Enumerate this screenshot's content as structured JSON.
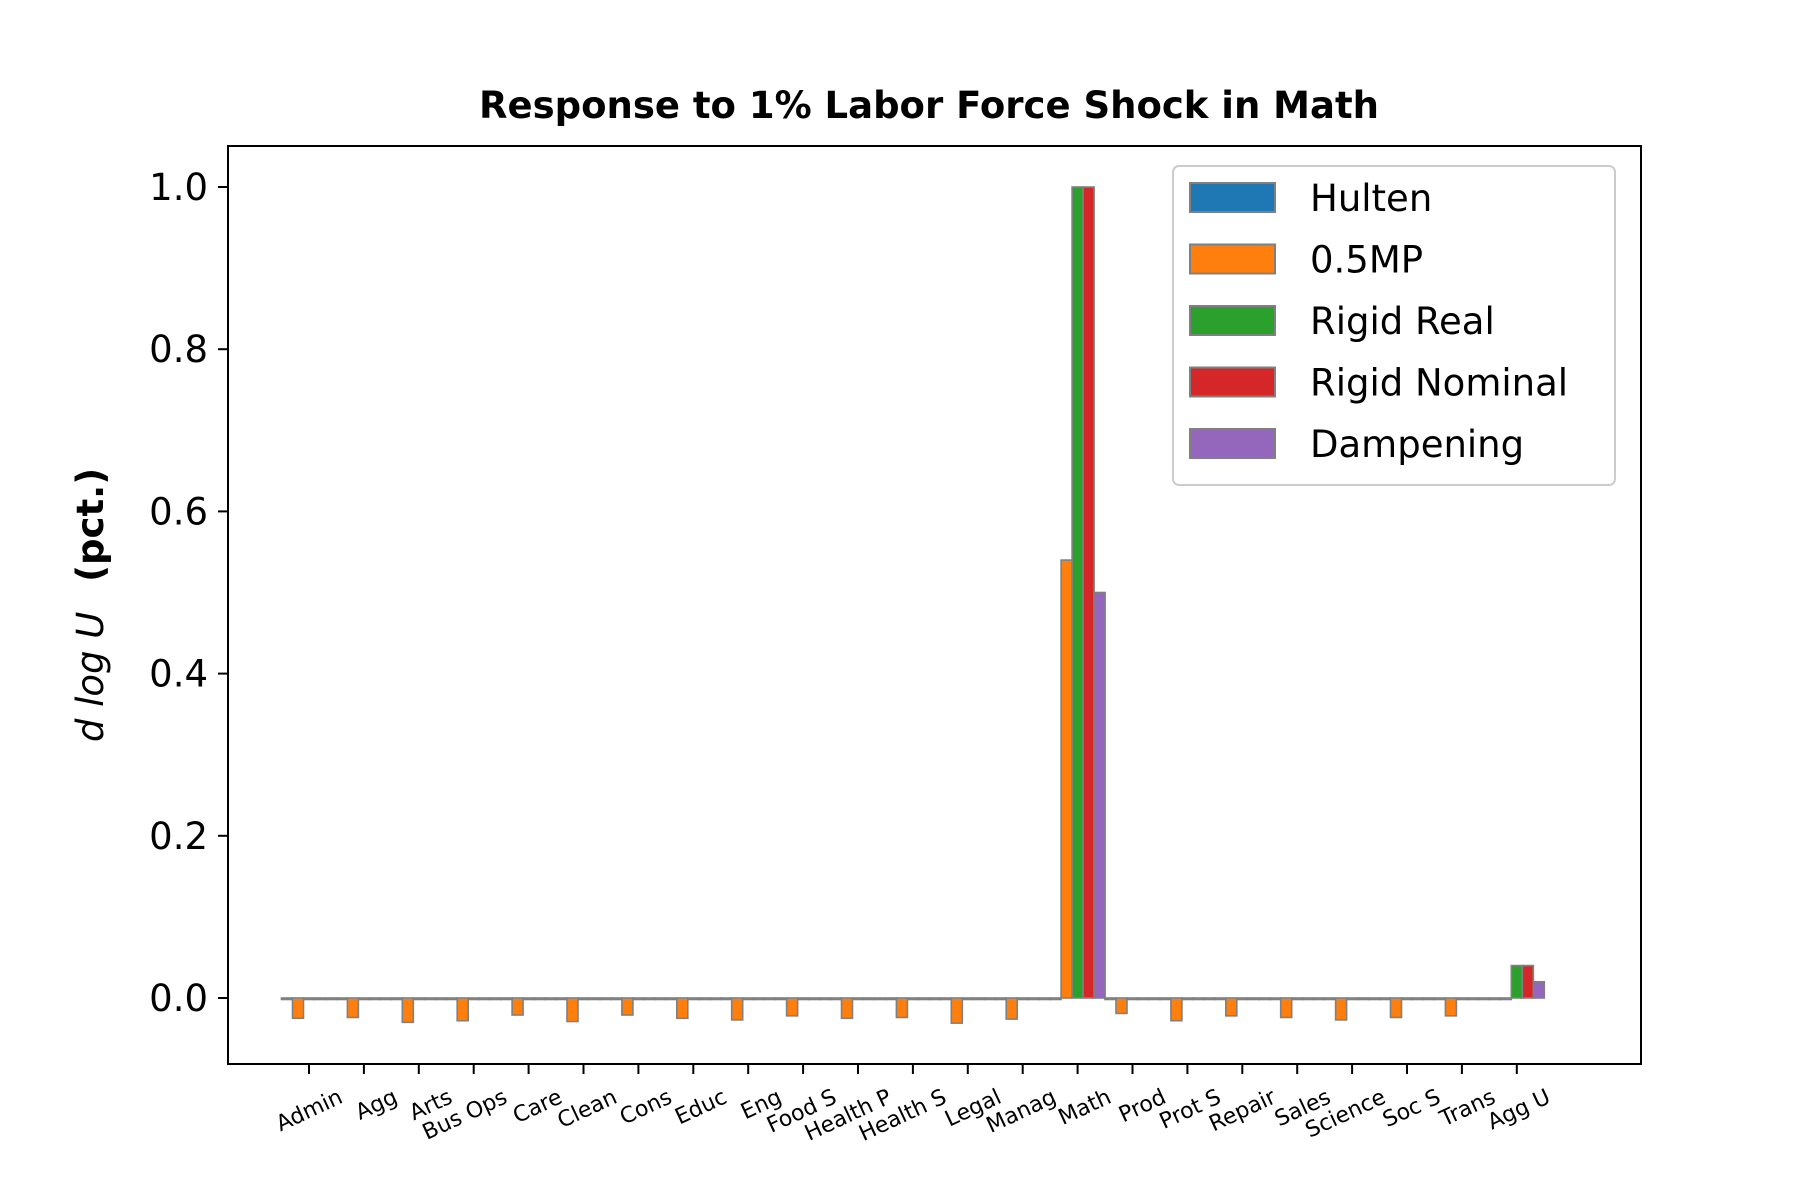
{
  "chart_data": {
    "type": "bar",
    "title": "Response to 1% Labor Force Shock in Math",
    "xlabel": "",
    "ylabel_math": "d log U",
    "ylabel_unit": "(pct.)",
    "ylim": [
      -0.08,
      1.05
    ],
    "yticks": [
      0.0,
      0.2,
      0.4,
      0.6,
      0.8,
      1.0
    ],
    "ytick_labels": [
      "0.0",
      "0.2",
      "0.4",
      "0.6",
      "0.8",
      "1.0"
    ],
    "grid": false,
    "legend_position": "top-right",
    "categories": [
      "Admin",
      "Agg",
      "Arts",
      "Bus Ops",
      "Care",
      "Clean",
      "Cons",
      "Educ",
      "Eng",
      "Food S",
      "Health P",
      "Health S",
      "Legal",
      "Manag",
      "Math",
      "Prod",
      "Prot S",
      "Repair",
      "Sales",
      "Science",
      "Soc S",
      "Trans",
      "Agg U"
    ],
    "series": [
      {
        "name": "Hulten",
        "color": "#1f77b4",
        "values": [
          0,
          0,
          0,
          0,
          0,
          0,
          0,
          0,
          0,
          0,
          0,
          0,
          0,
          0,
          0,
          0,
          0,
          0,
          0,
          0,
          0,
          0,
          0
        ]
      },
      {
        "name": "0.5MP",
        "color": "#ff7f0e",
        "values": [
          -0.025,
          -0.024,
          -0.03,
          -0.028,
          -0.021,
          -0.029,
          -0.021,
          -0.025,
          -0.027,
          -0.022,
          -0.025,
          -0.024,
          -0.031,
          -0.026,
          0.54,
          -0.019,
          -0.028,
          -0.022,
          -0.024,
          -0.027,
          -0.024,
          -0.022,
          0.0
        ]
      },
      {
        "name": "Rigid Real",
        "color": "#2ca02c",
        "values": [
          0,
          0,
          0,
          0,
          0,
          0,
          0,
          0,
          0,
          0,
          0,
          0,
          0,
          0,
          1.0,
          0,
          0,
          0,
          0,
          0,
          0,
          0,
          0.04
        ]
      },
      {
        "name": "Rigid Nominal",
        "color": "#d62728",
        "values": [
          0,
          0,
          0,
          0,
          0,
          0,
          0,
          0,
          0,
          0,
          0,
          0,
          0,
          0,
          1.0,
          0,
          0,
          0,
          0,
          0,
          0,
          0,
          0.04
        ]
      },
      {
        "name": "Dampening",
        "color": "#9467bd",
        "values": [
          0,
          0,
          0,
          0,
          0,
          0,
          0,
          0,
          0,
          0,
          0,
          0,
          0,
          0,
          0.5,
          0,
          0,
          0,
          0,
          0,
          0,
          0,
          0.02
        ]
      }
    ]
  }
}
